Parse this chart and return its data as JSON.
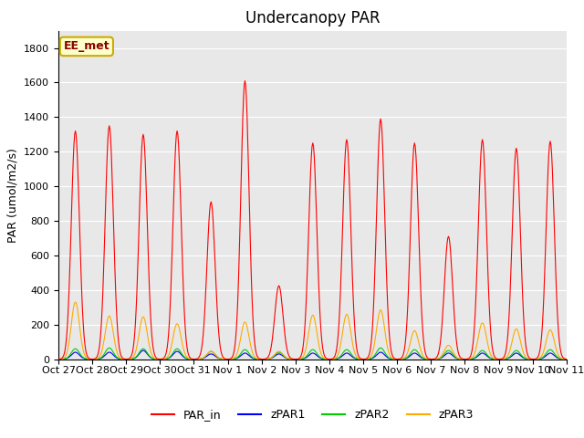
{
  "title": "Undercanopy PAR",
  "ylabel": "PAR (umol/m2/s)",
  "xlabel": "",
  "annotation": "EE_met",
  "ylim": [
    0,
    1900
  ],
  "yticks": [
    0,
    200,
    400,
    600,
    800,
    1000,
    1200,
    1400,
    1600,
    1800
  ],
  "background_color": "#ffffff",
  "plot_bg_color": "#e8e8e8",
  "legend_entries": [
    "PAR_in",
    "zPAR1",
    "zPAR2",
    "zPAR3"
  ],
  "legend_colors": [
    "#ff0000",
    "#0000ff",
    "#00cc00",
    "#ffaa00"
  ],
  "line_colors": {
    "PAR_in": "#ff0000",
    "zPAR1": "#0000ff",
    "zPAR2": "#00cc00",
    "zPAR3": "#ffaa00"
  },
  "x_tick_labels": [
    "Oct 27",
    "Oct 28",
    "Oct 29",
    "Oct 30",
    "Oct 31",
    "Nov 1",
    "Nov 2",
    "Nov 3",
    "Nov 4",
    "Nov 5",
    "Nov 6",
    "Nov 7",
    "Nov 8",
    "Nov 9",
    "Nov 10",
    "Nov 11"
  ],
  "days": 15,
  "points_per_day": 48,
  "par_in_peaks": [
    1320,
    1350,
    1300,
    1320,
    910,
    1610,
    425,
    1250,
    1270,
    1390,
    1250,
    710,
    1270,
    1220,
    1260
  ],
  "zpar1_peaks": [
    40,
    40,
    50,
    45,
    30,
    35,
    30,
    35,
    35,
    40,
    35,
    35,
    35,
    35,
    35
  ],
  "zpar2_peaks": [
    60,
    65,
    60,
    60,
    45,
    55,
    40,
    55,
    55,
    65,
    55,
    50,
    50,
    50,
    55
  ],
  "zpar3_peaks": [
    330,
    250,
    245,
    205,
    45,
    215,
    45,
    255,
    260,
    285,
    165,
    80,
    210,
    175,
    170
  ],
  "title_fontsize": 12,
  "axis_fontsize": 9,
  "tick_fontsize": 8
}
